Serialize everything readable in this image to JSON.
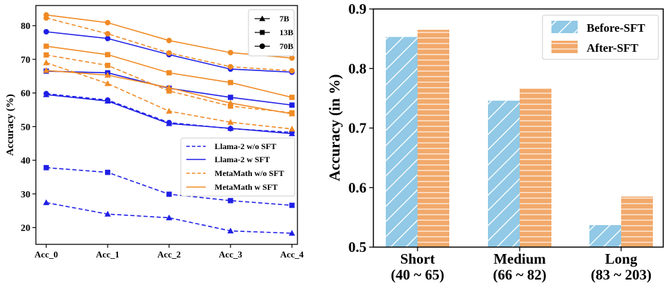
{
  "chart_data": [
    {
      "type": "line",
      "categories": [
        "Acc_0",
        "Acc_1",
        "Acc_2",
        "Acc_3",
        "Acc_4"
      ],
      "ylabel": "Accuracy (%)",
      "ylim": [
        15,
        86
      ],
      "yticks": [
        20,
        30,
        40,
        50,
        60,
        70,
        80
      ],
      "grid": false,
      "marker_legend": {
        "placement": "top-right",
        "entries": [
          {
            "label": "7B",
            "marker": "triangle"
          },
          {
            "label": "13B",
            "marker": "square"
          },
          {
            "label": "70B",
            "marker": "circle"
          }
        ]
      },
      "style_legend": {
        "placement": "center-right",
        "entries": [
          {
            "label": "Llama-2 w/o SFT",
            "color": "#1f1fe6",
            "dash": true
          },
          {
            "label": "Llama-2 w SFT",
            "color": "#1f1fe6",
            "dash": false
          },
          {
            "label": "MetaMath w/o SFT",
            "color": "#f08a24",
            "dash": true
          },
          {
            "label": "MetaMath w SFT",
            "color": "#f08a24",
            "dash": false
          }
        ]
      },
      "series": [
        {
          "model": "Llama-2",
          "size": "7B",
          "sft": false,
          "color": "#1f1fe6",
          "dash": true,
          "marker": "triangle",
          "values": [
            27.4,
            24.0,
            22.9,
            19.0,
            18.3
          ]
        },
        {
          "model": "Llama-2",
          "size": "13B",
          "sft": false,
          "color": "#1f1fe6",
          "dash": true,
          "marker": "square",
          "values": [
            37.8,
            36.4,
            29.9,
            28.0,
            26.6
          ]
        },
        {
          "model": "Llama-2",
          "size": "70B",
          "sft": false,
          "color": "#1f1fe6",
          "dash": true,
          "marker": "circle",
          "values": [
            59.8,
            57.9,
            51.2,
            49.4,
            48.3
          ]
        },
        {
          "model": "Llama-2",
          "size": "7B",
          "sft": true,
          "color": "#1f1fe6",
          "dash": false,
          "marker": "triangle",
          "values": [
            59.5,
            57.6,
            50.9,
            49.5,
            47.9
          ]
        },
        {
          "model": "Llama-2",
          "size": "13B",
          "sft": true,
          "color": "#1f1fe6",
          "dash": false,
          "marker": "square",
          "values": [
            66.5,
            66.0,
            61.4,
            58.7,
            56.4
          ]
        },
        {
          "model": "Llama-2",
          "size": "70B",
          "sft": true,
          "color": "#1f1fe6",
          "dash": false,
          "marker": "circle",
          "values": [
            78.2,
            76.2,
            71.4,
            67.1,
            66.2
          ]
        },
        {
          "model": "MetaMath",
          "size": "7B",
          "sft": false,
          "color": "#f08a24",
          "dash": true,
          "marker": "triangle",
          "values": [
            69.0,
            62.8,
            54.6,
            51.3,
            49.3
          ]
        },
        {
          "model": "MetaMath",
          "size": "13B",
          "sft": false,
          "color": "#f08a24",
          "dash": true,
          "marker": "square",
          "values": [
            71.3,
            68.2,
            60.6,
            56.1,
            54.1
          ]
        },
        {
          "model": "MetaMath",
          "size": "70B",
          "sft": false,
          "color": "#f08a24",
          "dash": true,
          "marker": "circle",
          "values": [
            82.3,
            77.6,
            71.9,
            67.8,
            66.6
          ]
        },
        {
          "model": "MetaMath",
          "size": "7B",
          "sft": true,
          "color": "#f08a24",
          "dash": false,
          "marker": "triangle",
          "values": [
            66.7,
            65.3,
            61.6,
            57.0,
            53.8
          ]
        },
        {
          "model": "MetaMath",
          "size": "13B",
          "sft": true,
          "color": "#f08a24",
          "dash": false,
          "marker": "square",
          "values": [
            73.9,
            71.4,
            66.0,
            63.1,
            58.7
          ]
        },
        {
          "model": "MetaMath",
          "size": "70B",
          "sft": true,
          "color": "#f08a24",
          "dash": false,
          "marker": "circle",
          "values": [
            83.2,
            80.9,
            75.6,
            72.0,
            70.4
          ]
        }
      ]
    },
    {
      "type": "bar",
      "categories": [
        {
          "name": "Short",
          "range": "(40 ~ 65)"
        },
        {
          "name": "Medium",
          "range": "(66 ~ 82)"
        },
        {
          "name": "Long",
          "range": "(83 ~ 203)"
        }
      ],
      "ylabel": "Accuracy (in %)",
      "ylim": [
        0.5,
        0.9
      ],
      "yticks": [
        "0.5",
        "0.6",
        "0.7",
        "0.8",
        "0.9"
      ],
      "grid": false,
      "legend": "top-right",
      "series": [
        {
          "name": "Before-SFT",
          "color": "#91c9e6",
          "hatch": "diagonal",
          "values": [
            0.853,
            0.746,
            0.537
          ]
        },
        {
          "name": "After-SFT",
          "color": "#f2a96b",
          "hatch": "horizontal",
          "values": [
            0.865,
            0.766,
            0.585
          ]
        }
      ]
    }
  ]
}
